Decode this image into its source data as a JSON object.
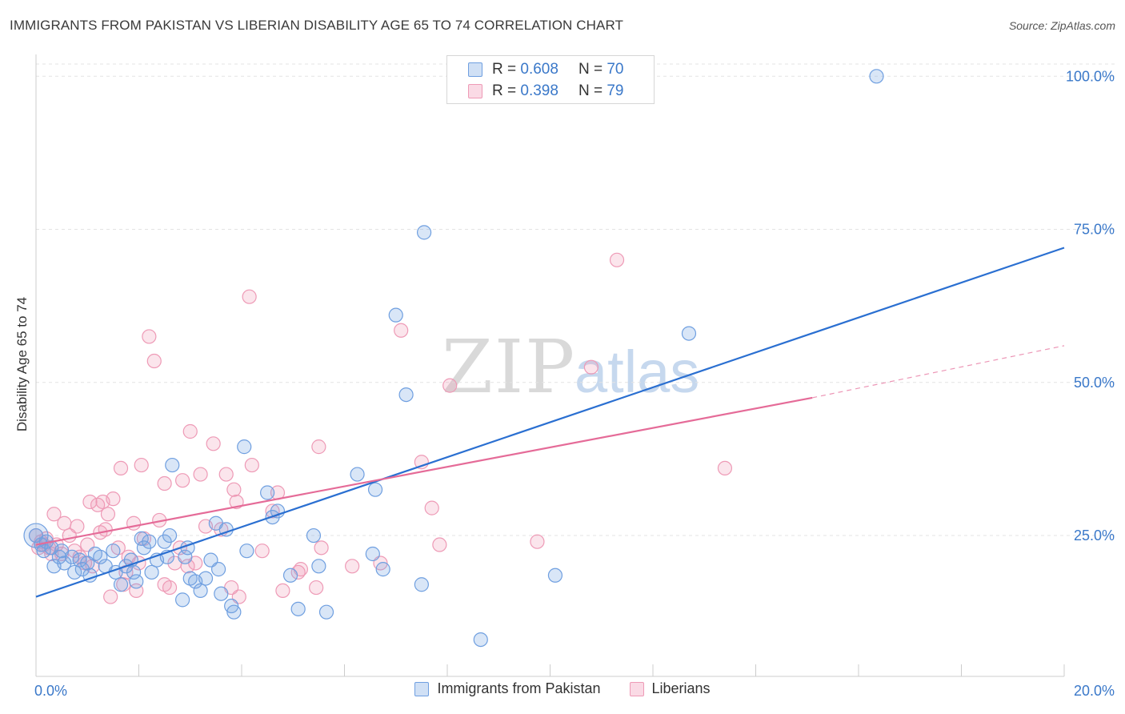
{
  "title": "IMMIGRANTS FROM PAKISTAN VS LIBERIAN DISABILITY AGE 65 TO 74 CORRELATION CHART",
  "source": "Source: ZipAtlas.com",
  "watermark": {
    "zip": "ZIP",
    "atlas": "atlas"
  },
  "legend_top": [
    {
      "r_label": "R =",
      "r_value": "0.608",
      "n_label": "N =",
      "n_value": "70"
    },
    {
      "r_label": "R =",
      "r_value": "0.398",
      "n_label": "N =",
      "n_value": "79"
    }
  ],
  "colors": {
    "pakistan_fill": "rgba(120,165,225,0.28)",
    "pakistan_stroke": "#6f9fe0",
    "pakistan_line": "#2a6fd1",
    "liberian_fill": "rgba(240,150,180,0.25)",
    "liberian_stroke": "#ee9ab6",
    "liberian_line": "#e56b98",
    "tick_text": "#3a78c9",
    "grid": "#e3e3e3"
  },
  "chart_data": {
    "type": "scatter",
    "title": "IMMIGRANTS FROM PAKISTAN VS LIBERIAN DISABILITY AGE 65 TO 74 CORRELATION CHART",
    "xlabel": "",
    "ylabel": "Disability Age 65 to 74",
    "xlim": [
      0,
      20
    ],
    "ylim": [
      2,
      102
    ],
    "x_tick_labels": [
      "0.0%",
      "20.0%"
    ],
    "y_ticks": [
      25,
      50,
      75,
      100
    ],
    "y_tick_labels": [
      "25.0%",
      "50.0%",
      "75.0%",
      "100.0%"
    ],
    "grid": true,
    "legend_position": "bottom",
    "series": [
      {
        "name": "Immigrants from Pakistan",
        "color": "#6f9fe0",
        "trend": {
          "x": [
            0,
            20
          ],
          "y": [
            15.0,
            72.0
          ],
          "style": "solid"
        },
        "points": [
          [
            0.0,
            25.0
          ],
          [
            0.1,
            23.5
          ],
          [
            0.15,
            22.5
          ],
          [
            0.2,
            24.0
          ],
          [
            0.3,
            23.0
          ],
          [
            0.35,
            20.0
          ],
          [
            0.45,
            21.5
          ],
          [
            0.5,
            22.5
          ],
          [
            0.55,
            20.5
          ],
          [
            0.7,
            21.5
          ],
          [
            0.75,
            19.0
          ],
          [
            0.85,
            21.0
          ],
          [
            0.9,
            19.5
          ],
          [
            1.0,
            20.5
          ],
          [
            1.05,
            18.5
          ],
          [
            1.15,
            22.0
          ],
          [
            1.25,
            21.5
          ],
          [
            1.35,
            20.0
          ],
          [
            1.5,
            22.5
          ],
          [
            1.55,
            19.0
          ],
          [
            1.65,
            17.0
          ],
          [
            1.75,
            20.0
          ],
          [
            1.85,
            21.0
          ],
          [
            1.9,
            19.0
          ],
          [
            1.95,
            17.5
          ],
          [
            2.05,
            24.5
          ],
          [
            2.1,
            23.0
          ],
          [
            2.2,
            24.0
          ],
          [
            2.25,
            19.0
          ],
          [
            2.35,
            21.0
          ],
          [
            2.5,
            24.0
          ],
          [
            2.55,
            21.5
          ],
          [
            2.6,
            25.0
          ],
          [
            2.65,
            36.5
          ],
          [
            2.85,
            14.5
          ],
          [
            2.9,
            21.5
          ],
          [
            2.95,
            23.0
          ],
          [
            3.0,
            18.0
          ],
          [
            3.1,
            17.5
          ],
          [
            3.2,
            16.0
          ],
          [
            3.3,
            18.0
          ],
          [
            3.4,
            21.0
          ],
          [
            3.5,
            27.0
          ],
          [
            3.55,
            19.5
          ],
          [
            3.6,
            15.5
          ],
          [
            3.7,
            26.0
          ],
          [
            3.8,
            13.5
          ],
          [
            3.85,
            12.5
          ],
          [
            4.05,
            39.5
          ],
          [
            4.1,
            22.5
          ],
          [
            4.5,
            32.0
          ],
          [
            4.6,
            28.0
          ],
          [
            4.7,
            29.0
          ],
          [
            4.95,
            18.5
          ],
          [
            5.1,
            13.0
          ],
          [
            5.4,
            25.0
          ],
          [
            5.5,
            20.0
          ],
          [
            5.65,
            12.5
          ],
          [
            6.25,
            35.0
          ],
          [
            6.55,
            22.0
          ],
          [
            6.6,
            32.5
          ],
          [
            6.75,
            19.5
          ],
          [
            7.0,
            61.0
          ],
          [
            7.2,
            48.0
          ],
          [
            7.5,
            17.0
          ],
          [
            7.55,
            74.5
          ],
          [
            8.65,
            8.0
          ],
          [
            10.1,
            18.5
          ],
          [
            12.7,
            58.0
          ],
          [
            16.35,
            100.0
          ]
        ]
      },
      {
        "name": "Liberians",
        "color": "#ee9ab6",
        "trend": {
          "x": [
            0,
            15.1
          ],
          "y": [
            23.5,
            47.5
          ],
          "style": "solid",
          "dashed_extension": {
            "x": [
              15.1,
              20
            ],
            "y": [
              47.5,
              56.0
            ]
          }
        },
        "points": [
          [
            0.0,
            25.0
          ],
          [
            0.1,
            24.0
          ],
          [
            0.15,
            23.5
          ],
          [
            0.2,
            24.5
          ],
          [
            0.25,
            23.0
          ],
          [
            0.35,
            28.5
          ],
          [
            0.4,
            23.5
          ],
          [
            0.5,
            22.0
          ],
          [
            0.55,
            27.0
          ],
          [
            0.65,
            25.0
          ],
          [
            0.75,
            22.5
          ],
          [
            0.8,
            26.5
          ],
          [
            0.85,
            21.5
          ],
          [
            0.95,
            20.5
          ],
          [
            1.0,
            23.5
          ],
          [
            1.05,
            30.5
          ],
          [
            1.1,
            20.0
          ],
          [
            1.2,
            30.0
          ],
          [
            1.25,
            25.5
          ],
          [
            1.3,
            30.5
          ],
          [
            1.35,
            26.0
          ],
          [
            1.4,
            28.5
          ],
          [
            1.45,
            15.0
          ],
          [
            1.5,
            31.0
          ],
          [
            1.6,
            23.0
          ],
          [
            1.65,
            36.0
          ],
          [
            1.7,
            17.0
          ],
          [
            1.75,
            19.0
          ],
          [
            1.8,
            21.5
          ],
          [
            1.9,
            27.0
          ],
          [
            1.95,
            16.0
          ],
          [
            2.0,
            20.5
          ],
          [
            2.05,
            36.5
          ],
          [
            2.1,
            24.5
          ],
          [
            2.2,
            57.5
          ],
          [
            2.3,
            53.5
          ],
          [
            2.4,
            27.5
          ],
          [
            2.5,
            33.5
          ],
          [
            2.5,
            17.0
          ],
          [
            2.6,
            16.5
          ],
          [
            2.7,
            20.5
          ],
          [
            2.8,
            23.0
          ],
          [
            2.85,
            34.0
          ],
          [
            2.95,
            20.0
          ],
          [
            3.0,
            42.0
          ],
          [
            3.1,
            20.5
          ],
          [
            3.2,
            35.0
          ],
          [
            3.3,
            26.5
          ],
          [
            3.45,
            40.0
          ],
          [
            3.6,
            26.0
          ],
          [
            3.7,
            35.0
          ],
          [
            3.8,
            16.5
          ],
          [
            3.85,
            32.5
          ],
          [
            3.9,
            30.5
          ],
          [
            3.95,
            15.0
          ],
          [
            4.15,
            64.0
          ],
          [
            4.2,
            36.5
          ],
          [
            4.4,
            22.5
          ],
          [
            4.6,
            29.0
          ],
          [
            4.7,
            32.0
          ],
          [
            4.8,
            16.0
          ],
          [
            5.1,
            19.0
          ],
          [
            5.15,
            19.5
          ],
          [
            5.45,
            16.5
          ],
          [
            5.5,
            39.5
          ],
          [
            5.55,
            23.0
          ],
          [
            6.15,
            20.0
          ],
          [
            6.7,
            20.5
          ],
          [
            7.1,
            58.5
          ],
          [
            7.5,
            37.0
          ],
          [
            7.7,
            29.5
          ],
          [
            7.85,
            23.5
          ],
          [
            8.05,
            49.5
          ],
          [
            9.75,
            24.0
          ],
          [
            10.8,
            52.5
          ],
          [
            11.3,
            70.0
          ],
          [
            13.4,
            36.0
          ],
          [
            0.05,
            23.0
          ],
          [
            0.3,
            22.0
          ]
        ]
      }
    ]
  },
  "legend_bottom": [
    {
      "label": "Immigrants from Pakistan"
    },
    {
      "label": "Liberians"
    }
  ]
}
